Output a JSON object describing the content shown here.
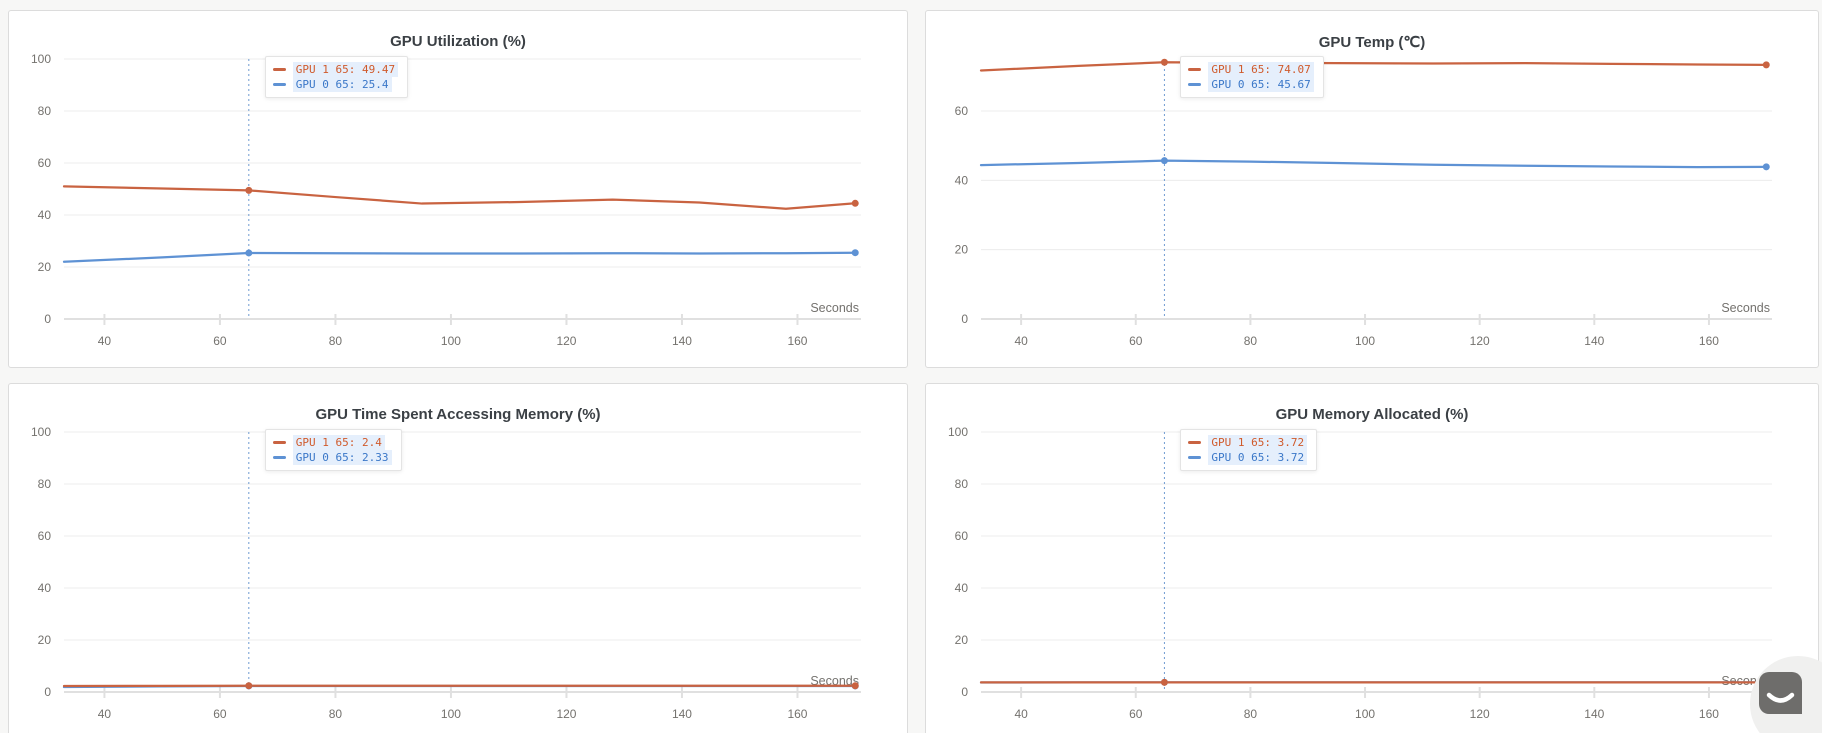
{
  "page": {
    "background": "#f7f7f6",
    "panel_border": "#dcdcdc",
    "grid_color": "#ececec",
    "axis_color": "#e0e0e0",
    "tick_label_color": "#74726e",
    "hover_line_color": "#6f9bd1",
    "tooltip_highlight": "#e5effc"
  },
  "chart_data": [
    {
      "id": "gpu-utilization",
      "type": "line",
      "title": "GPU Utilization (%)",
      "xlabel": "Seconds",
      "xlim": [
        33,
        171
      ],
      "xticks": [
        40,
        60,
        80,
        100,
        120,
        140,
        160
      ],
      "ylim": [
        0,
        100
      ],
      "yticks": [
        0,
        20,
        40,
        60,
        80,
        100
      ],
      "grid": true,
      "x": [
        33,
        50,
        65,
        80,
        95,
        112,
        128,
        143,
        158,
        170
      ],
      "series": [
        {
          "name": "GPU 1",
          "color": "#c96341",
          "text_color": "#d05a2b",
          "values": [
            51.0,
            50.2,
            49.47,
            46.9,
            44.4,
            45.0,
            45.9,
            44.8,
            42.4,
            44.5
          ]
        },
        {
          "name": "GPU 0",
          "color": "#5e92d4",
          "text_color": "#3a77c8",
          "values": [
            22.0,
            23.7,
            25.4,
            25.3,
            25.2,
            25.2,
            25.3,
            25.2,
            25.3,
            25.5
          ]
        }
      ],
      "hover": {
        "x": 65,
        "rows": [
          {
            "series": "GPU 1",
            "text": "GPU 1 65: 49.47"
          },
          {
            "series": "GPU 0",
            "text": "GPU 0 65: 25.4"
          }
        ]
      }
    },
    {
      "id": "gpu-temp",
      "type": "line",
      "title": "GPU Temp (℃)",
      "xlabel": "Seconds",
      "xlim": [
        33,
        171
      ],
      "xticks": [
        40,
        60,
        80,
        100,
        120,
        140,
        160
      ],
      "ylim": [
        0,
        75
      ],
      "yticks": [
        0,
        20,
        40,
        60
      ],
      "grid": true,
      "x": [
        33,
        50,
        65,
        80,
        95,
        112,
        128,
        143,
        158,
        170
      ],
      "series": [
        {
          "name": "GPU 1",
          "color": "#c96341",
          "text_color": "#d05a2b",
          "values": [
            71.7,
            73.0,
            74.07,
            73.9,
            73.8,
            73.7,
            73.8,
            73.6,
            73.4,
            73.3
          ]
        },
        {
          "name": "GPU 0",
          "color": "#5e92d4",
          "text_color": "#3a77c8",
          "values": [
            44.4,
            45.0,
            45.67,
            45.4,
            45.0,
            44.5,
            44.2,
            44.0,
            43.8,
            43.9
          ]
        }
      ],
      "hover": {
        "x": 65,
        "rows": [
          {
            "series": "GPU 1",
            "text": "GPU 1 65: 74.07"
          },
          {
            "series": "GPU 0",
            "text": "GPU 0 65: 45.67"
          }
        ]
      }
    },
    {
      "id": "gpu-time-accessing-memory",
      "type": "line",
      "title": "GPU Time Spent Accessing Memory (%)",
      "xlabel": "Seconds",
      "xlim": [
        33,
        171
      ],
      "xticks": [
        40,
        60,
        80,
        100,
        120,
        140,
        160
      ],
      "ylim": [
        0,
        100
      ],
      "yticks": [
        0,
        20,
        40,
        60,
        80,
        100
      ],
      "grid": true,
      "x": [
        33,
        50,
        65,
        80,
        95,
        112,
        128,
        143,
        158,
        170
      ],
      "series": [
        {
          "name": "GPU 1",
          "color": "#c96341",
          "text_color": "#d05a2b",
          "values": [
            2.3,
            2.37,
            2.4,
            2.4,
            2.4,
            2.4,
            2.4,
            2.4,
            2.4,
            2.4
          ]
        },
        {
          "name": "GPU 0",
          "color": "#5e92d4",
          "text_color": "#3a77c8",
          "values": [
            1.9,
            2.15,
            2.33,
            2.3,
            2.3,
            2.3,
            2.3,
            2.3,
            2.3,
            2.33
          ]
        }
      ],
      "hover": {
        "x": 65,
        "rows": [
          {
            "series": "GPU 1",
            "text": "GPU 1 65: 2.4"
          },
          {
            "series": "GPU 0",
            "text": "GPU 0 65: 2.33"
          }
        ]
      }
    },
    {
      "id": "gpu-memory-allocated",
      "type": "line",
      "title": "GPU Memory Allocated (%)",
      "xlabel": "Seconds",
      "xlim": [
        33,
        171
      ],
      "xticks": [
        40,
        60,
        80,
        100,
        120,
        140,
        160
      ],
      "ylim": [
        0,
        100
      ],
      "yticks": [
        0,
        20,
        40,
        60,
        80,
        100
      ],
      "grid": true,
      "x": [
        33,
        50,
        65,
        80,
        95,
        112,
        128,
        143,
        158,
        170
      ],
      "series": [
        {
          "name": "GPU 1",
          "color": "#c96341",
          "text_color": "#d05a2b",
          "values": [
            3.7,
            3.72,
            3.72,
            3.72,
            3.72,
            3.72,
            3.72,
            3.72,
            3.72,
            3.72
          ]
        },
        {
          "name": "GPU 0",
          "color": "#5e92d4",
          "text_color": "#3a77c8",
          "values": [
            3.65,
            3.7,
            3.72,
            3.72,
            3.72,
            3.72,
            3.72,
            3.72,
            3.72,
            3.72
          ]
        }
      ],
      "hover": {
        "x": 65,
        "rows": [
          {
            "series": "GPU 1",
            "text": "GPU 1 65: 3.72"
          },
          {
            "series": "GPU 0",
            "text": "GPU 0 65: 3.72"
          }
        ]
      }
    }
  ],
  "chat_widget": {
    "icon": "chat-bubble-smile",
    "circle_color": "#f0f0ef",
    "bubble_color": "#6e6d6b"
  }
}
